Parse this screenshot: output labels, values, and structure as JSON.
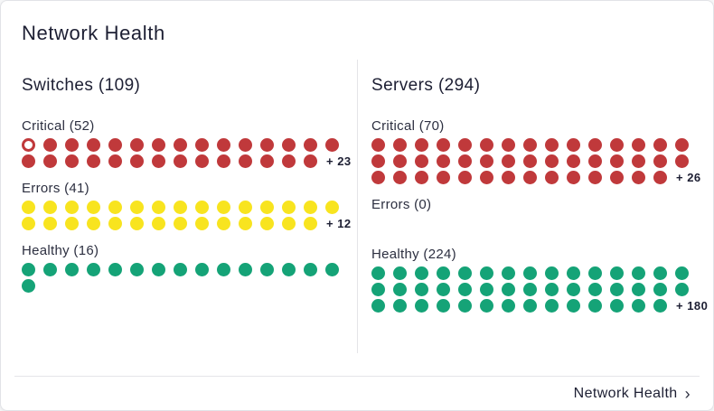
{
  "card": {
    "title": "Network Health"
  },
  "colors": {
    "critical": "#c0393b",
    "errors": "#f8e41f",
    "healthy": "#15a377",
    "text_dark": "#1d1f33",
    "divider": "#e4e4e8"
  },
  "display": {
    "dots_per_row": 15
  },
  "columns": [
    {
      "id": "switches",
      "heading": "Switches (109)",
      "total": 109,
      "groups": [
        {
          "label": "Critical (52)",
          "status": "critical",
          "count": 52,
          "visible_dots": 29,
          "overflow_label": "+ 23",
          "first_dot_hollow": true
        },
        {
          "label": "Errors (41)",
          "status": "errors",
          "count": 41,
          "visible_dots": 29,
          "overflow_label": "+ 12"
        },
        {
          "label": "Healthy (16)",
          "status": "healthy",
          "count": 16,
          "visible_dots": 16
        }
      ]
    },
    {
      "id": "servers",
      "heading": "Servers (294)",
      "total": 294,
      "groups": [
        {
          "label": "Critical (70)",
          "status": "critical",
          "count": 70,
          "visible_dots": 44,
          "overflow_label": "+ 26"
        },
        {
          "label": "Errors (0)",
          "status": "errors",
          "count": 0,
          "visible_dots": 0
        },
        {
          "label": "Healthy (224)",
          "status": "healthy",
          "count": 224,
          "visible_dots": 44,
          "overflow_label": "+ 180"
        }
      ]
    }
  ],
  "footer": {
    "link_label": "Network Health",
    "chevron": "›"
  },
  "chart_data": [
    {
      "type": "waffle",
      "title": "Switches",
      "total": 109,
      "categories": [
        "Critical",
        "Errors",
        "Healthy"
      ],
      "values": [
        52,
        41,
        16
      ],
      "colors": [
        "#c0393b",
        "#f8e41f",
        "#15a377"
      ]
    },
    {
      "type": "waffle",
      "title": "Servers",
      "total": 294,
      "categories": [
        "Critical",
        "Errors",
        "Healthy"
      ],
      "values": [
        70,
        0,
        224
      ],
      "colors": [
        "#c0393b",
        "#f8e41f",
        "#15a377"
      ]
    }
  ]
}
